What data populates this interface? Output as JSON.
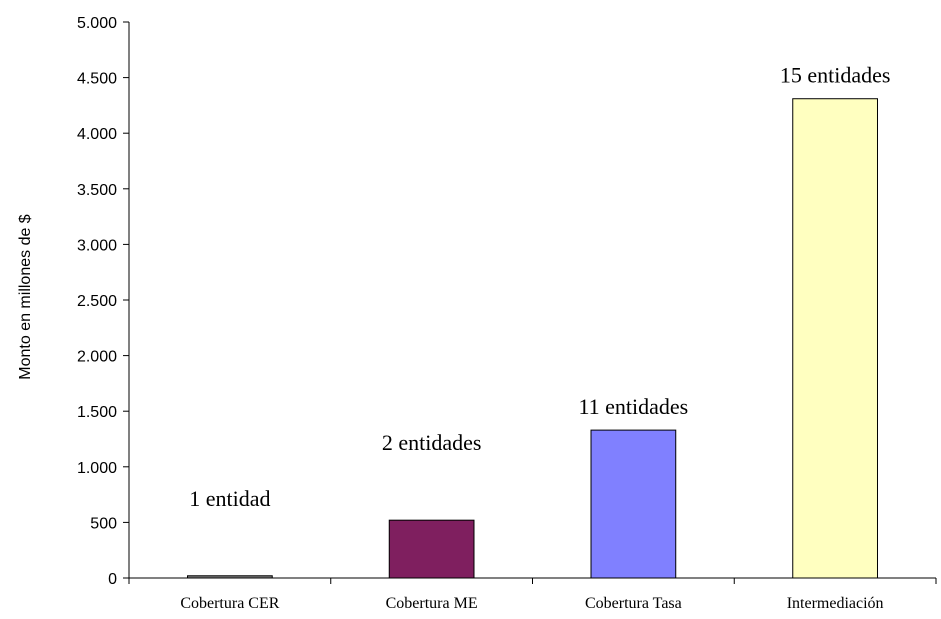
{
  "chart_data": {
    "type": "bar",
    "title": "",
    "xlabel": "",
    "ylabel": "Monto en millones de $",
    "ylim": [
      0,
      5000
    ],
    "y_ticks": [
      {
        "value": 0,
        "label": "0"
      },
      {
        "value": 500,
        "label": "500"
      },
      {
        "value": 1000,
        "label": "1.000"
      },
      {
        "value": 1500,
        "label": "1.500"
      },
      {
        "value": 2000,
        "label": "2.000"
      },
      {
        "value": 2500,
        "label": "2.500"
      },
      {
        "value": 3000,
        "label": "3.000"
      },
      {
        "value": 3500,
        "label": "3.500"
      },
      {
        "value": 4000,
        "label": "4.000"
      },
      {
        "value": 4500,
        "label": "4.500"
      },
      {
        "value": 5000,
        "label": "5.000"
      }
    ],
    "categories": [
      "Cobertura CER",
      "Cobertura ME",
      "Cobertura Tasa",
      "Intermediación"
    ],
    "values": [
      20,
      520,
      1330,
      4310
    ],
    "data_labels": [
      "1 entidad",
      "2 entidades",
      "11 entidades",
      "15 entidades"
    ],
    "colors": [
      "#7F7F7F",
      "#7F1F5F",
      "#8080FF",
      "#FFFFC0"
    ],
    "grid": false,
    "legend": "none"
  }
}
